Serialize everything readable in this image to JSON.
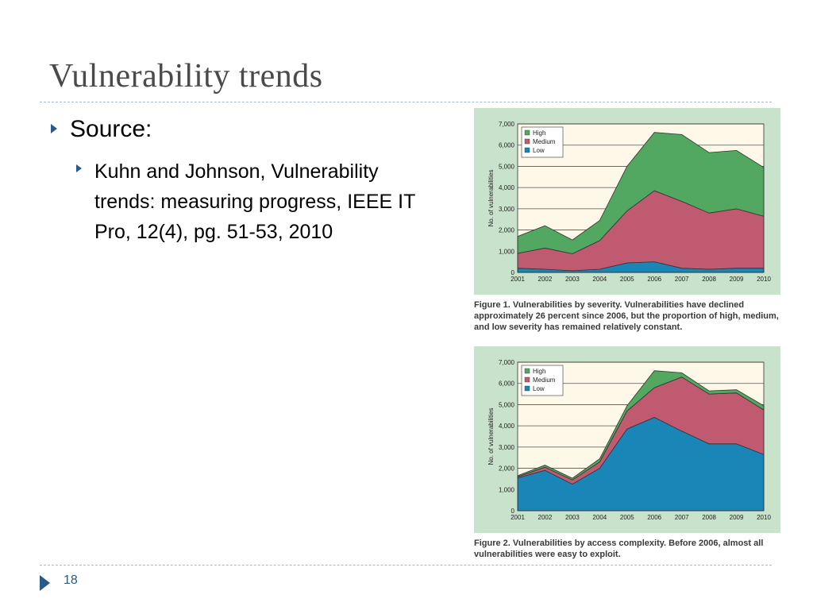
{
  "slide": {
    "title": "Vulnerability trends",
    "bullet1": "Source:",
    "bullet2": "Kuhn and Johnson, Vulnerability trends: measuring progress, IEEE IT Pro, 12(4), pg. 51-53, 2010",
    "page_number": "18"
  },
  "colors": {
    "high": "#52a860",
    "medium": "#c05a70",
    "low": "#1a86b8",
    "plot_bg": "#fdf8e8",
    "panel_bg": "#c9e2cb",
    "accent": "#2a5a8a"
  },
  "chart_data": [
    {
      "type": "area",
      "stacked": true,
      "caption": "Figure 1. Vulnerabilities by severity. Vulnerabilities have declined approximately 26 percent since 2006, but the proportion of high, medium, and low severity has remained relatively constant.",
      "ylabel": "No. of vulnerabilities",
      "xlabel": "",
      "ylim": [
        0,
        7000
      ],
      "yticks": [
        "0",
        "1,000",
        "2,000",
        "3,000",
        "4,000",
        "5,000",
        "6,000",
        "7,000"
      ],
      "x": [
        "2001",
        "2002",
        "2003",
        "2004",
        "2005",
        "2006",
        "2007",
        "2008",
        "2009",
        "2010"
      ],
      "legend": [
        "High",
        "Medium",
        "Low"
      ],
      "legend_position": "top-left",
      "grid": true,
      "series": [
        {
          "name": "Low",
          "values": [
            200,
            150,
            80,
            150,
            450,
            500,
            200,
            150,
            200,
            200
          ]
        },
        {
          "name": "Medium",
          "values": [
            700,
            1000,
            800,
            1350,
            2450,
            3350,
            3150,
            2650,
            2800,
            2450
          ]
        },
        {
          "name": "High",
          "values": [
            800,
            1050,
            650,
            950,
            2100,
            2750,
            3150,
            2850,
            2750,
            2300
          ]
        }
      ]
    },
    {
      "type": "area",
      "stacked": true,
      "caption": "Figure 2. Vulnerabilities by access complexity. Before 2006, almost all vulnerabilities were easy to exploit.",
      "ylabel": "No. of vulnerabilities",
      "xlabel": "",
      "ylim": [
        0,
        7000
      ],
      "yticks": [
        "0",
        "1,000",
        "2,000",
        "3,000",
        "4,000",
        "5,000",
        "6,000",
        "7,000"
      ],
      "x": [
        "2001",
        "2002",
        "2003",
        "2004",
        "2005",
        "2006",
        "2007",
        "2008",
        "2009",
        "2010"
      ],
      "legend": [
        "High",
        "Medium",
        "Low"
      ],
      "legend_position": "top-left",
      "grid": true,
      "series": [
        {
          "name": "Low",
          "values": [
            1550,
            1900,
            1250,
            2000,
            3850,
            4400,
            3750,
            3150,
            3150,
            2650
          ]
        },
        {
          "name": "Medium",
          "values": [
            50,
            150,
            200,
            300,
            850,
            1400,
            2550,
            2350,
            2400,
            2100
          ]
        },
        {
          "name": "High",
          "values": [
            50,
            100,
            80,
            150,
            250,
            800,
            200,
            150,
            150,
            200
          ]
        }
      ]
    }
  ]
}
